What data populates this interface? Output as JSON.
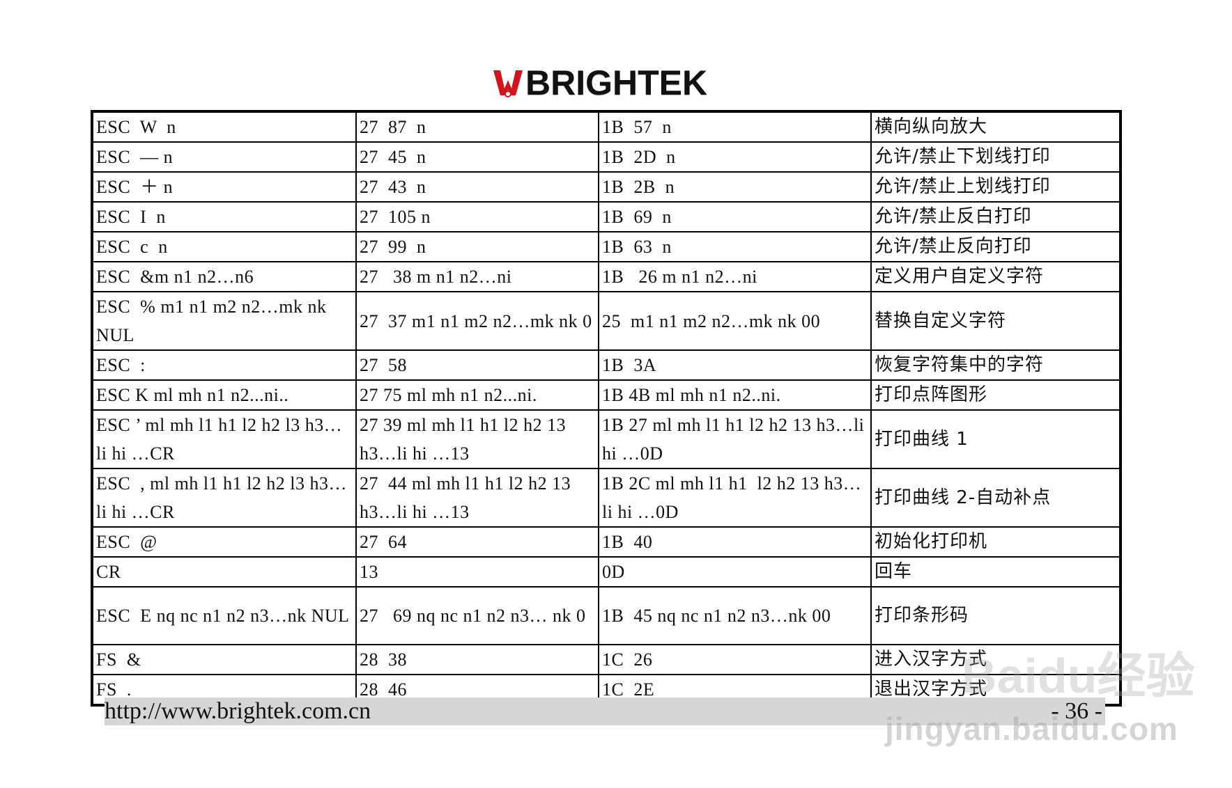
{
  "header": {
    "logo_text": "BRIGHTEK",
    "logo_color": "#d4141c"
  },
  "table": {
    "rows": [
      {
        "cmd": "ESC  W  n",
        "dec": "27  87  n",
        "hex": "1B  57  n",
        "desc": "横向纵向放大",
        "double": false
      },
      {
        "cmd": "ESC  — n",
        "dec": "27  45  n",
        "hex": "1B  2D  n",
        "desc": "允许/禁止下划线打印",
        "double": false
      },
      {
        "cmd": "ESC  ＋ n",
        "dec": "27  43  n",
        "hex": "1B  2B  n",
        "desc": "允许/禁止上划线打印",
        "double": false
      },
      {
        "cmd": "ESC  I  n",
        "dec": "27  105 n",
        "hex": "1B  69  n",
        "desc": "允许/禁止反白打印",
        "double": false
      },
      {
        "cmd": "ESC  c  n",
        "dec": "27  99  n",
        "hex": "1B  63  n",
        "desc": "允许/禁止反向打印",
        "double": false
      },
      {
        "cmd": "ESC  &m n1 n2…n6",
        "dec": "27   38 m n1 n2…ni",
        "hex": "1B   26 m n1 n2…ni",
        "desc": "定义用户自定义字符",
        "double": false
      },
      {
        "cmd": "ESC  % m1 n1 m2 n2…mk nk NUL",
        "dec": "27  37 m1 n1 m2 n2…mk nk 0",
        "hex": "25  m1 n1 m2 n2…mk nk 00",
        "desc": "替换自定义字符",
        "double": true
      },
      {
        "cmd": "ESC  :",
        "dec": "27  58",
        "hex": "1B  3A",
        "desc": "恢复字符集中的字符",
        "double": false
      },
      {
        "cmd": "ESC K ml mh n1 n2...ni..",
        "dec": "27 75 ml mh n1 n2...ni.",
        "hex": "1B 4B ml mh n1 n2..ni.",
        "desc": "打印点阵图形",
        "double": false
      },
      {
        "cmd": "ESC ’ ml mh l1 h1 l2 h2 l3 h3…li hi …CR",
        "dec": "27 39 ml mh l1 h1 l2 h2 13 h3…li hi …13",
        "hex": "1B 27 ml mh l1 h1 l2 h2 13 h3…li hi …0D",
        "desc": "打印曲线 1",
        "double": true
      },
      {
        "cmd": "ESC  , ml mh l1 h1 l2 h2 l3 h3…li hi …CR",
        "dec": "27  44 ml mh l1 h1 l2 h2 13 h3…li hi …13",
        "hex": "1B 2C ml mh l1 h1  l2 h2 13 h3…li hi …0D",
        "desc": "打印曲线 2-自动补点",
        "double": true
      },
      {
        "cmd": "ESC  @",
        "dec": "27  64",
        "hex": "1B  40",
        "desc": "初始化打印机",
        "double": false
      },
      {
        "cmd": "CR",
        "dec": "13",
        "hex": "0D",
        "desc": "回车",
        "double": false
      },
      {
        "cmd": "ESC  E nq nc n1 n2 n3…nk NUL",
        "dec": "27   69 nq nc n1 n2 n3… nk 0",
        "hex": "1B  45 nq nc n1 n2 n3…nk 00",
        "desc": "打印条形码",
        "double": true
      },
      {
        "cmd": "FS  &",
        "dec": "28  38",
        "hex": "1C  26",
        "desc": "进入汉字方式",
        "double": false
      },
      {
        "cmd": "FS  .",
        "dec": "28  46",
        "hex": "1C  2E",
        "desc": "退出汉字方式",
        "double": false
      }
    ]
  },
  "footer": {
    "url": "http://www.brightek.com.cn",
    "page": "- 36 -"
  },
  "watermark": {
    "text": "Baidu经验",
    "url": "jingyan.baidu.com"
  }
}
